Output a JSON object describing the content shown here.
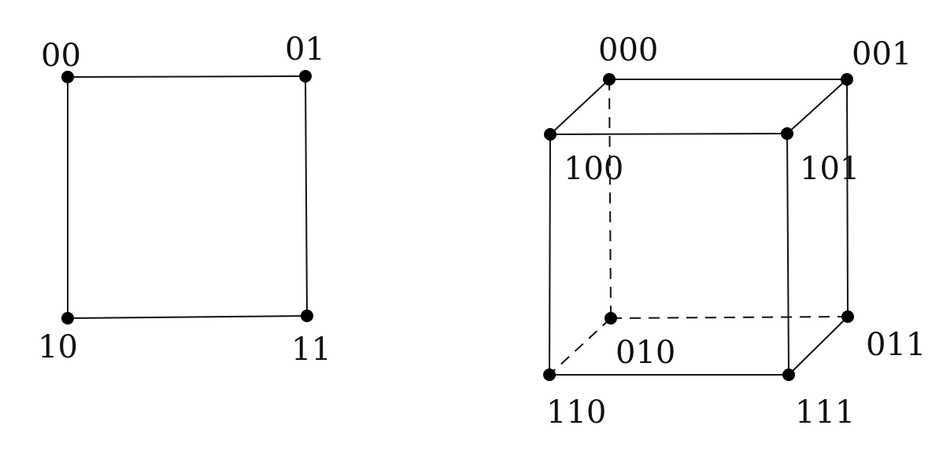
{
  "square": {
    "vertices": [
      {
        "id": "00",
        "label": "00"
      },
      {
        "id": "01",
        "label": "01"
      },
      {
        "id": "10",
        "label": "10"
      },
      {
        "id": "11",
        "label": "11"
      }
    ],
    "edges": [
      {
        "from": "00",
        "to": "01"
      },
      {
        "from": "01",
        "to": "11"
      },
      {
        "from": "11",
        "to": "10"
      },
      {
        "from": "10",
        "to": "00"
      }
    ]
  },
  "cube": {
    "vertices": [
      {
        "id": "000",
        "label": "000"
      },
      {
        "id": "001",
        "label": "001"
      },
      {
        "id": "100",
        "label": "100"
      },
      {
        "id": "101",
        "label": "101"
      },
      {
        "id": "010",
        "label": "010"
      },
      {
        "id": "011",
        "label": "011"
      },
      {
        "id": "110",
        "label": "110"
      },
      {
        "id": "111",
        "label": "111"
      }
    ],
    "edges": [
      {
        "from": "000",
        "to": "001",
        "style": "solid"
      },
      {
        "from": "000",
        "to": "100",
        "style": "solid"
      },
      {
        "from": "001",
        "to": "101",
        "style": "solid"
      },
      {
        "from": "100",
        "to": "101",
        "style": "solid"
      },
      {
        "from": "100",
        "to": "110",
        "style": "solid"
      },
      {
        "from": "101",
        "to": "111",
        "style": "solid"
      },
      {
        "from": "001",
        "to": "011",
        "style": "solid"
      },
      {
        "from": "110",
        "to": "111",
        "style": "solid"
      },
      {
        "from": "111",
        "to": "011",
        "style": "solid"
      },
      {
        "from": "000",
        "to": "010",
        "style": "dashed"
      },
      {
        "from": "010",
        "to": "011",
        "style": "dashed"
      },
      {
        "from": "010",
        "to": "110",
        "style": "dashed"
      }
    ]
  },
  "colors": {
    "line": "#111111",
    "vertex": "#000000",
    "background": "#ffffff"
  }
}
